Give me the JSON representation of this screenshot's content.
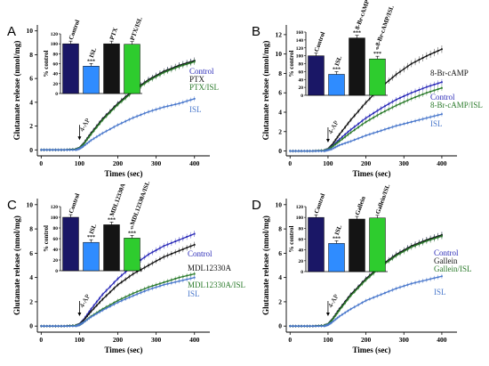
{
  "colors": {
    "navy": "#1a1766",
    "blue": "#2f8cff",
    "black": "#141414",
    "green": "#2ecc2e",
    "curveNavy": "#2b2bb8",
    "curveBlue": "#4a78cc",
    "curveGreen": "#2a7a2a"
  },
  "chart_data": [
    {
      "panel": "A",
      "type": "line",
      "xlabel": "Times (sec)",
      "ylabel": "Glutamate release (nmol/mg)",
      "xlim": [
        -10,
        440
      ],
      "ylim": [
        -0.5,
        10.5
      ],
      "xticks": [
        0,
        100,
        200,
        300,
        400
      ],
      "yticks": [
        0,
        2,
        4,
        6,
        8,
        10
      ],
      "annotation": "4-AP",
      "legend": [
        "Control",
        "PTX",
        "PTX/ISL",
        "ISL"
      ],
      "series": [
        {
          "name": "Control",
          "color": "curveNavy",
          "x": [
            0,
            30,
            60,
            90,
            100,
            110,
            130,
            160,
            200,
            240,
            280,
            320,
            360,
            400
          ],
          "y": [
            0,
            0,
            0,
            0.05,
            0.15,
            0.5,
            1.4,
            2.6,
            3.9,
            5.0,
            5.9,
            6.6,
            7.1,
            7.5
          ]
        },
        {
          "name": "PTX",
          "color": "black",
          "x": [
            0,
            30,
            60,
            90,
            100,
            110,
            130,
            160,
            200,
            240,
            280,
            320,
            360,
            400
          ],
          "y": [
            0,
            0,
            0,
            0.05,
            0.15,
            0.5,
            1.4,
            2.6,
            3.9,
            5.0,
            5.9,
            6.6,
            7.1,
            7.5
          ]
        },
        {
          "name": "PTX/ISL",
          "color": "curveGreen",
          "x": [
            0,
            30,
            60,
            90,
            100,
            110,
            130,
            160,
            200,
            240,
            280,
            320,
            360,
            400
          ],
          "y": [
            0,
            0,
            0,
            0.05,
            0.15,
            0.45,
            1.3,
            2.5,
            3.8,
            4.9,
            5.8,
            6.5,
            7.0,
            7.4
          ]
        },
        {
          "name": "ISL",
          "color": "curveBlue",
          "x": [
            0,
            30,
            60,
            90,
            100,
            110,
            130,
            160,
            200,
            240,
            280,
            320,
            360,
            400
          ],
          "y": [
            0,
            0,
            0,
            0,
            0.1,
            0.3,
            0.8,
            1.4,
            2.1,
            2.7,
            3.2,
            3.6,
            3.9,
            4.3
          ]
        }
      ],
      "inset": {
        "ylabel": "% control",
        "ylim": [
          0,
          120
        ],
        "yticks": [
          0,
          20,
          40,
          60,
          80,
          100,
          120
        ],
        "categories": [
          "Control",
          "ISL",
          "PTX",
          "PTX/ISL"
        ],
        "values": [
          100,
          55,
          100,
          99
        ],
        "colors": [
          "navy",
          "blue",
          "black",
          "green"
        ],
        "marks": [
          "",
          "***",
          "",
          ""
        ]
      }
    },
    {
      "panel": "B",
      "type": "line",
      "xlabel": "Times (sec)",
      "ylabel": "Glutamate release (nmol/mg)",
      "xlim": [
        -10,
        440
      ],
      "ylim": [
        -0.5,
        13
      ],
      "xticks": [
        0,
        100,
        200,
        300,
        400
      ],
      "yticks": [
        0,
        2,
        4,
        6,
        8,
        10,
        12
      ],
      "annotation": "4-AP",
      "legend": [
        "8-Br-cAMP",
        "Control",
        "8-Br-cAMP/ISL",
        "ISL"
      ],
      "series": [
        {
          "name": "8-Br-cAMP",
          "color": "black",
          "x": [
            0,
            30,
            60,
            90,
            100,
            110,
            130,
            160,
            200,
            240,
            280,
            320,
            360,
            400
          ],
          "y": [
            0,
            0,
            0,
            0.05,
            0.2,
            0.6,
            1.7,
            3.2,
            5.0,
            6.6,
            7.9,
            9.0,
            9.8,
            10.5
          ]
        },
        {
          "name": "Control",
          "color": "curveNavy",
          "x": [
            0,
            30,
            60,
            90,
            100,
            110,
            130,
            160,
            200,
            240,
            280,
            320,
            360,
            400
          ],
          "y": [
            0,
            0,
            0,
            0.05,
            0.15,
            0.45,
            1.2,
            2.2,
            3.4,
            4.4,
            5.3,
            6.0,
            6.6,
            7.1
          ]
        },
        {
          "name": "8-Br-cAMP/ISL",
          "color": "curveGreen",
          "x": [
            0,
            30,
            60,
            90,
            100,
            110,
            130,
            160,
            200,
            240,
            280,
            320,
            360,
            400
          ],
          "y": [
            0,
            0,
            0,
            0.05,
            0.15,
            0.4,
            1.0,
            1.9,
            3.0,
            3.9,
            4.7,
            5.4,
            6.0,
            6.5
          ]
        },
        {
          "name": "ISL",
          "color": "curveBlue",
          "x": [
            0,
            30,
            60,
            90,
            100,
            110,
            130,
            160,
            200,
            240,
            280,
            320,
            360,
            400
          ],
          "y": [
            0,
            0,
            0,
            0,
            0.1,
            0.2,
            0.6,
            1.0,
            1.6,
            2.1,
            2.6,
            3.0,
            3.4,
            3.8
          ]
        }
      ],
      "inset": {
        "ylabel": "% control",
        "ylim": [
          0,
          160
        ],
        "yticks": [
          0,
          20,
          40,
          60,
          80,
          100,
          120,
          140,
          160
        ],
        "categories": [
          "Control",
          "ISL",
          "8-Br-cAMP",
          "8-Br-cAMP/ISL"
        ],
        "values": [
          100,
          53,
          145,
          92
        ],
        "colors": [
          "navy",
          "blue",
          "black",
          "green"
        ],
        "marks": [
          "",
          "***",
          "***",
          "***"
        ],
        "marks2": [
          "",
          "",
          "",
          "#"
        ]
      }
    },
    {
      "panel": "C",
      "type": "line",
      "xlabel": "Times (sec)",
      "ylabel": "Glutamate release (nmol/mg)",
      "xlim": [
        -10,
        440
      ],
      "ylim": [
        -0.5,
        10.5
      ],
      "xticks": [
        0,
        100,
        200,
        300,
        400
      ],
      "yticks": [
        0,
        2,
        4,
        6,
        8,
        10
      ],
      "annotation": "4-AP",
      "legend": [
        "Control",
        "MDL12330A",
        "MDL12330A/ISL",
        "ISL"
      ],
      "series": [
        {
          "name": "Control",
          "color": "curveNavy",
          "x": [
            0,
            30,
            60,
            90,
            100,
            110,
            130,
            160,
            200,
            240,
            280,
            320,
            360,
            400
          ],
          "y": [
            0,
            0,
            0,
            0.05,
            0.15,
            0.5,
            1.4,
            2.6,
            3.9,
            5.0,
            5.9,
            6.6,
            7.1,
            7.6
          ]
        },
        {
          "name": "MDL12330A",
          "color": "black",
          "x": [
            0,
            30,
            60,
            90,
            100,
            110,
            130,
            160,
            200,
            240,
            280,
            320,
            360,
            400
          ],
          "y": [
            0,
            0,
            0,
            0.05,
            0.15,
            0.45,
            1.2,
            2.2,
            3.4,
            4.3,
            5.0,
            5.7,
            6.2,
            6.7
          ]
        },
        {
          "name": "MDL12330A/ISL",
          "color": "curveGreen",
          "x": [
            0,
            30,
            60,
            90,
            100,
            110,
            130,
            160,
            200,
            240,
            280,
            320,
            360,
            400
          ],
          "y": [
            0,
            0,
            0,
            0.05,
            0.1,
            0.3,
            0.8,
            1.4,
            2.1,
            2.7,
            3.2,
            3.6,
            4.0,
            4.3
          ]
        },
        {
          "name": "ISL",
          "color": "curveBlue",
          "x": [
            0,
            30,
            60,
            90,
            100,
            110,
            130,
            160,
            200,
            240,
            280,
            320,
            360,
            400
          ],
          "y": [
            0,
            0,
            0,
            0,
            0.1,
            0.3,
            0.75,
            1.3,
            1.95,
            2.5,
            3.0,
            3.4,
            3.7,
            4.0
          ]
        }
      ],
      "inset": {
        "ylabel": "% control",
        "ylim": [
          0,
          120
        ],
        "yticks": [
          0,
          20,
          40,
          60,
          80,
          100,
          120
        ],
        "categories": [
          "Control",
          "ISL",
          "MDL12330A",
          "MDL12330A/ISL"
        ],
        "values": [
          100,
          53,
          86,
          61
        ],
        "colors": [
          "navy",
          "blue",
          "black",
          "green"
        ],
        "marks": [
          "",
          "***",
          "***",
          "***"
        ],
        "marks2": [
          "",
          "",
          "",
          "#"
        ]
      }
    },
    {
      "panel": "D",
      "type": "line",
      "xlabel": "Times (sec)",
      "ylabel": "Glutamate release (nmol/mg)",
      "xlim": [
        -10,
        440
      ],
      "ylim": [
        -0.5,
        10.5
      ],
      "xticks": [
        0,
        100,
        200,
        300,
        400
      ],
      "yticks": [
        0,
        2,
        4,
        6,
        8,
        10
      ],
      "annotation": "4-AP",
      "legend": [
        "Control",
        "Gallein",
        "Gallein/ISL",
        "ISL"
      ],
      "series": [
        {
          "name": "Control",
          "color": "curveNavy",
          "x": [
            0,
            30,
            60,
            90,
            100,
            110,
            130,
            160,
            200,
            240,
            280,
            320,
            360,
            400
          ],
          "y": [
            0,
            0,
            0,
            0.05,
            0.15,
            0.5,
            1.4,
            2.6,
            3.9,
            5.0,
            5.9,
            6.6,
            7.1,
            7.5
          ]
        },
        {
          "name": "Gallein",
          "color": "black",
          "x": [
            0,
            30,
            60,
            90,
            100,
            110,
            130,
            160,
            200,
            240,
            280,
            320,
            360,
            400
          ],
          "y": [
            0,
            0,
            0,
            0.05,
            0.15,
            0.5,
            1.4,
            2.6,
            3.9,
            5.0,
            5.9,
            6.6,
            7.1,
            7.5
          ]
        },
        {
          "name": "Gallein/ISL",
          "color": "curveGreen",
          "x": [
            0,
            30,
            60,
            90,
            100,
            110,
            130,
            160,
            200,
            240,
            280,
            320,
            360,
            400
          ],
          "y": [
            0,
            0,
            0,
            0.05,
            0.15,
            0.45,
            1.3,
            2.5,
            3.8,
            4.9,
            5.8,
            6.5,
            7.0,
            7.4
          ]
        },
        {
          "name": "ISL",
          "color": "curveBlue",
          "x": [
            0,
            30,
            60,
            90,
            100,
            110,
            130,
            160,
            200,
            240,
            280,
            320,
            360,
            400
          ],
          "y": [
            0,
            0,
            0,
            0,
            0.1,
            0.3,
            0.8,
            1.4,
            2.1,
            2.6,
            3.1,
            3.5,
            3.8,
            4.1
          ]
        }
      ],
      "inset": {
        "ylabel": "% control",
        "ylim": [
          0,
          120
        ],
        "yticks": [
          0,
          20,
          40,
          60,
          80,
          100,
          120
        ],
        "categories": [
          "Control",
          "ISL",
          "Gallein",
          "Gallein/ISL"
        ],
        "values": [
          100,
          52,
          97,
          99
        ],
        "colors": [
          "navy",
          "blue",
          "black",
          "green"
        ],
        "marks": [
          "",
          "***",
          "",
          ""
        ]
      }
    }
  ]
}
